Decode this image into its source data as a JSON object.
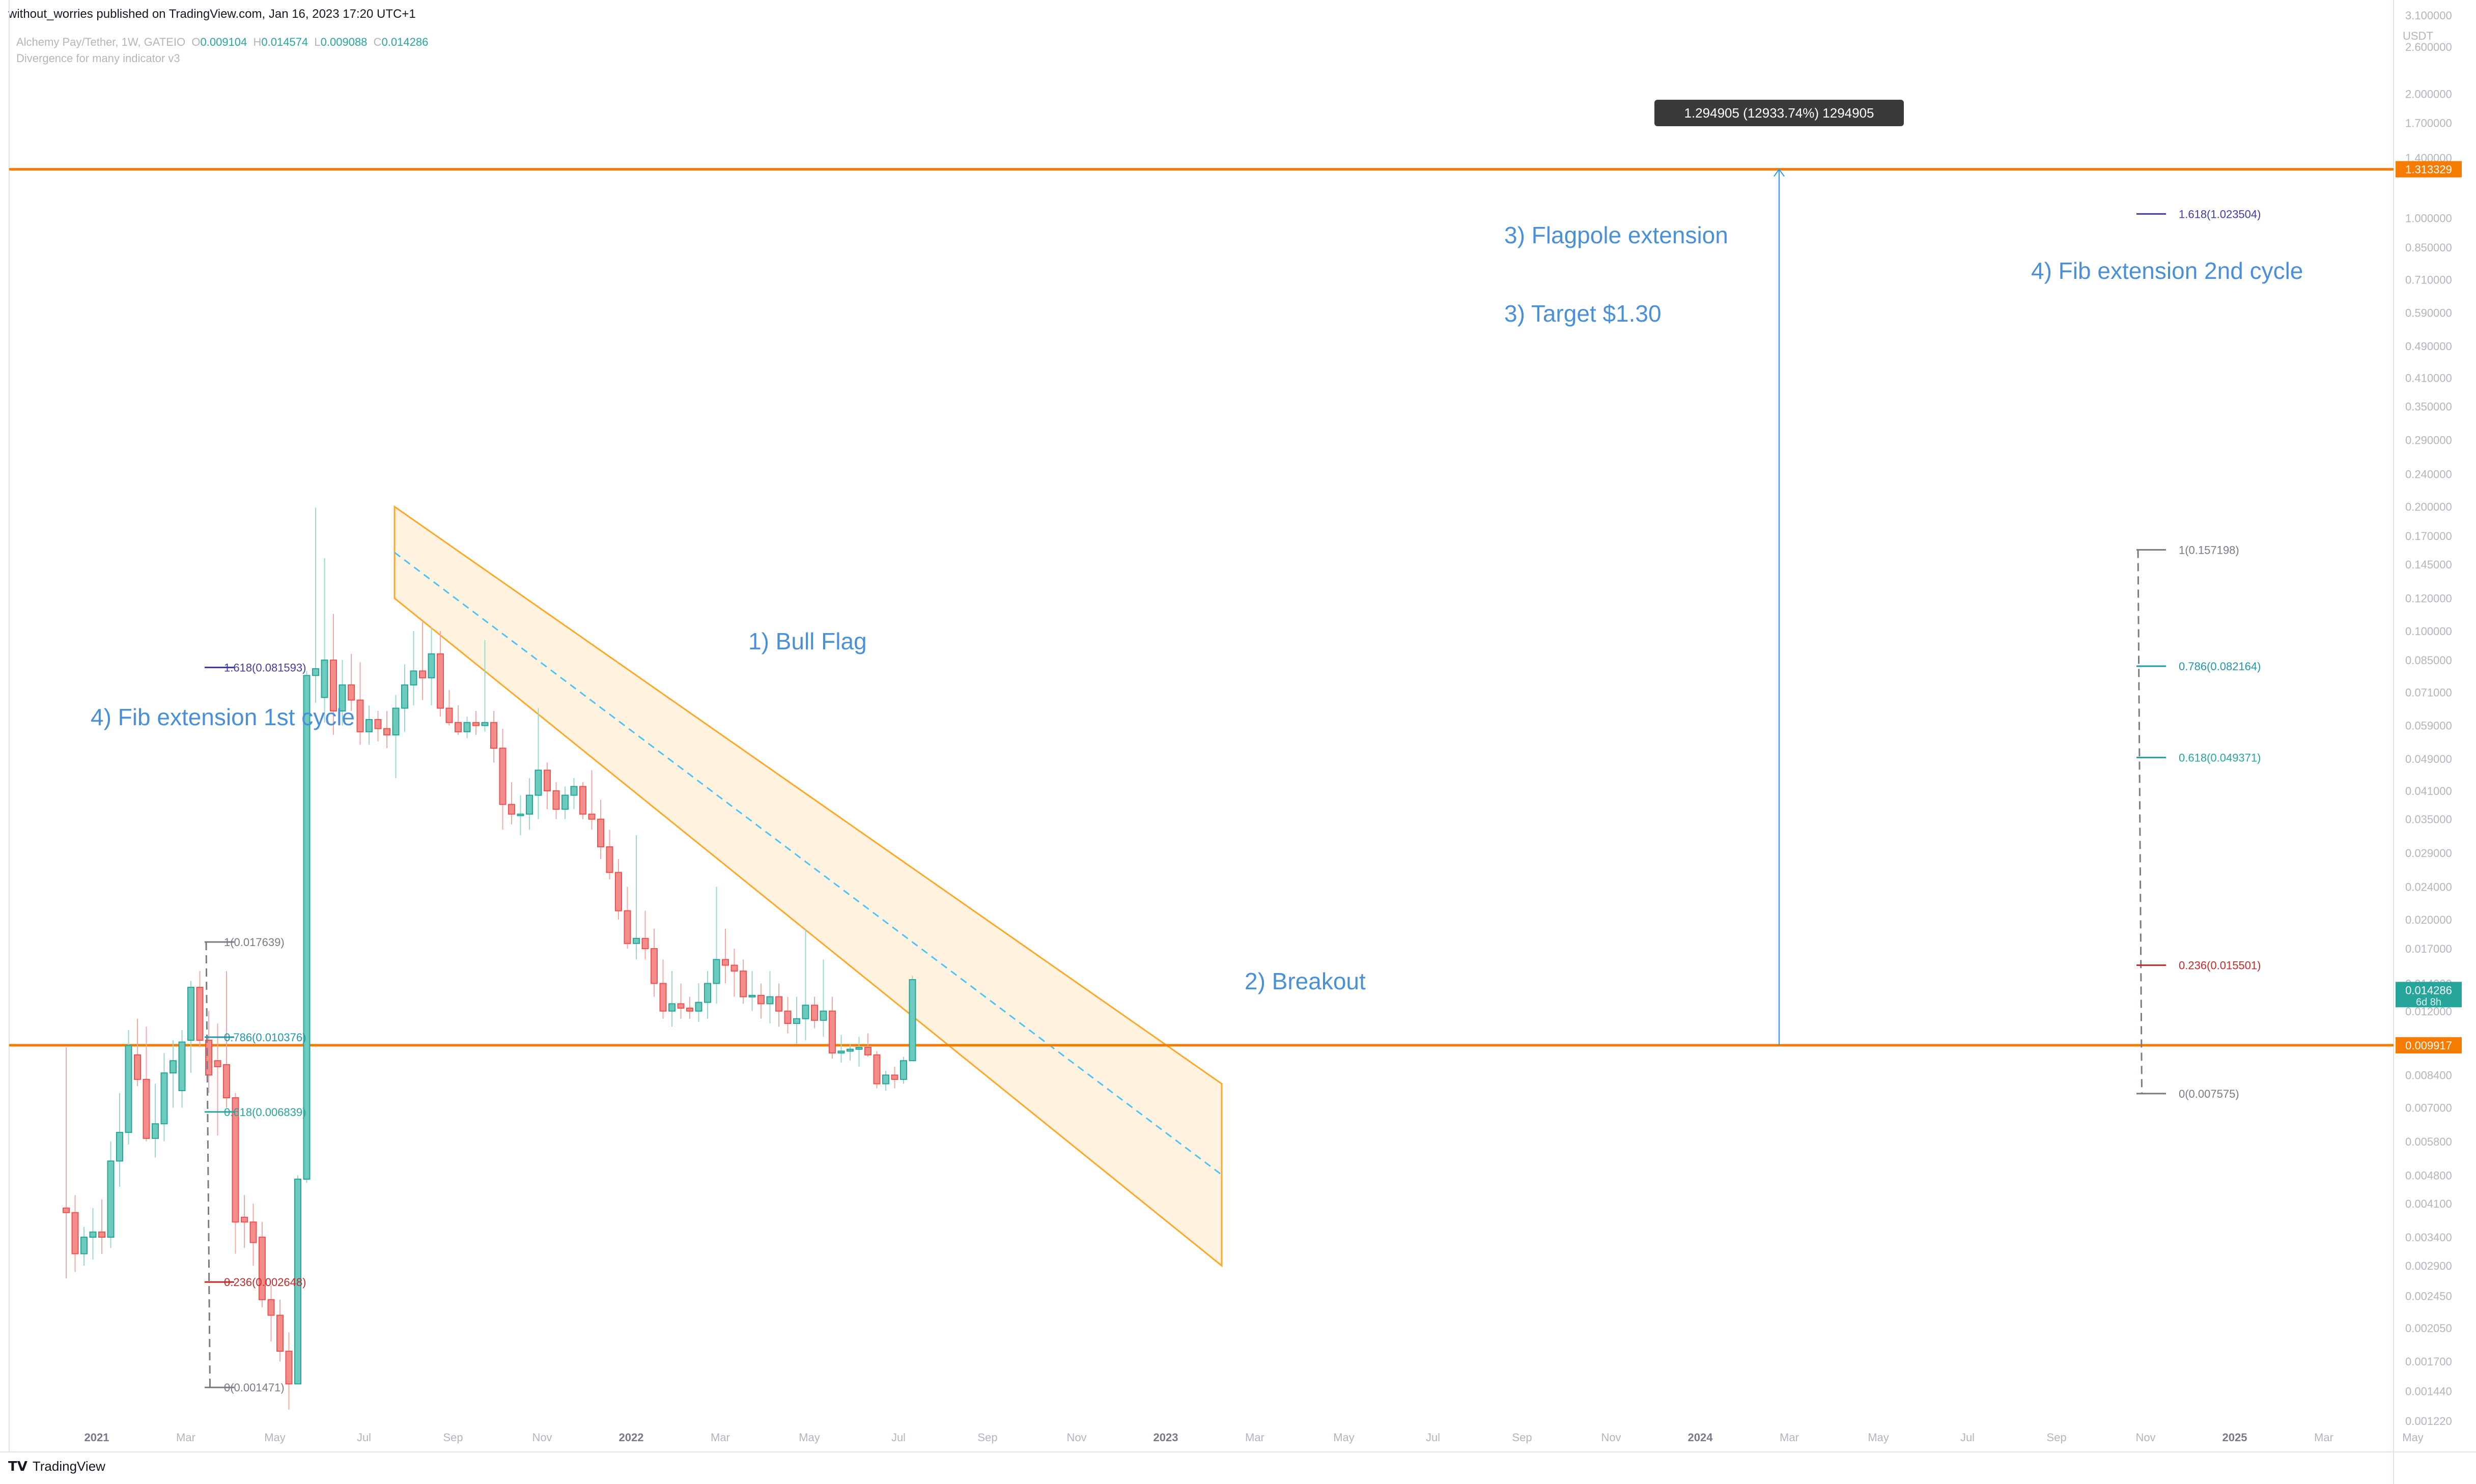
{
  "header": {
    "published": "without_worries published on TradingView.com, Jan 16, 2023 17:20 UTC+1"
  },
  "symbol": {
    "name": "Alchemy Pay/Tether, 1W, GATEIO",
    "o": "O",
    "o_val": "0.009104",
    "h": "H",
    "h_val": "0.014574",
    "l": "L",
    "l_val": "0.009088",
    "c": "C",
    "c_val": "0.014286",
    "indicator": "Divergence for many indicator v3"
  },
  "footer": {
    "brand": "TradingView"
  },
  "colors": {
    "up": "#26a69a",
    "up_body": "#6ccbbc",
    "down": "#ef5350",
    "down_body": "#f28d8b",
    "orange": "#f57c00",
    "channel": "#ffa726",
    "annotation": "#4a90d9",
    "ruler": "#2196f3"
  },
  "chart_data": {
    "type": "candlestick",
    "instrument": "Alchemy Pay/Tether",
    "timeframe": "1W",
    "exchange": "GATEIO",
    "y_scale": "log",
    "y_unit": "USDT",
    "ylim": [
      0.00105,
      3.1
    ],
    "y_ticks": [
      "3.100000",
      "2.600000",
      "2.000000",
      "1.700000",
      "1.400000",
      "1.000000",
      "0.850000",
      "0.710000",
      "0.590000",
      "0.490000",
      "0.410000",
      "0.350000",
      "0.290000",
      "0.240000",
      "0.200000",
      "0.170000",
      "0.145000",
      "0.120000",
      "0.100000",
      "0.085000",
      "0.071000",
      "0.059000",
      "0.049000",
      "0.041000",
      "0.035000",
      "0.029000",
      "0.024000",
      "0.020000",
      "0.017000",
      "0.014000",
      "0.012000",
      "0.010000",
      "0.008400",
      "0.007000",
      "0.005800",
      "0.004800",
      "0.004100",
      "0.003400",
      "0.002900",
      "0.002450",
      "0.002050",
      "0.001700",
      "0.001440",
      "0.001220"
    ],
    "x_ticks": [
      "2021",
      "Mar",
      "May",
      "Jul",
      "Sep",
      "Nov",
      "2022",
      "Mar",
      "May",
      "Jul",
      "Sep",
      "Nov",
      "2023",
      "Mar",
      "May",
      "Jul",
      "Sep",
      "Nov",
      "2024",
      "Mar",
      "May",
      "Jul",
      "Sep",
      "Nov",
      "2025",
      "Mar",
      "May"
    ],
    "price_labels": {
      "resistance": "1.313329",
      "current": "0.014286",
      "countdown": "6d 8h",
      "support": "0.009917"
    },
    "horizontal_lines": [
      {
        "name": "resistance",
        "value": 1.313329
      },
      {
        "name": "support",
        "value": 0.009917
      }
    ],
    "ohlc_weekly": [
      {
        "o": 0.004,
        "h": 0.0098,
        "l": 0.0027,
        "c": 0.0039
      },
      {
        "o": 0.0039,
        "h": 0.0043,
        "l": 0.0028,
        "c": 0.0031
      },
      {
        "o": 0.0031,
        "h": 0.0036,
        "l": 0.0029,
        "c": 0.0034
      },
      {
        "o": 0.0034,
        "h": 0.004,
        "l": 0.003,
        "c": 0.0035
      },
      {
        "o": 0.0035,
        "h": 0.0042,
        "l": 0.0031,
        "c": 0.0034
      },
      {
        "o": 0.0034,
        "h": 0.0058,
        "l": 0.0032,
        "c": 0.0052
      },
      {
        "o": 0.0052,
        "h": 0.0076,
        "l": 0.0045,
        "c": 0.0061
      },
      {
        "o": 0.0061,
        "h": 0.0108,
        "l": 0.0057,
        "c": 0.0099
      },
      {
        "o": 0.0094,
        "h": 0.0115,
        "l": 0.0079,
        "c": 0.0082
      },
      {
        "o": 0.0082,
        "h": 0.011,
        "l": 0.0058,
        "c": 0.0059
      },
      {
        "o": 0.0059,
        "h": 0.008,
        "l": 0.0053,
        "c": 0.0064
      },
      {
        "o": 0.0064,
        "h": 0.0095,
        "l": 0.0058,
        "c": 0.0085
      },
      {
        "o": 0.0085,
        "h": 0.0102,
        "l": 0.007,
        "c": 0.0091
      },
      {
        "o": 0.0077,
        "h": 0.0108,
        "l": 0.007,
        "c": 0.0101
      },
      {
        "o": 0.0102,
        "h": 0.0142,
        "l": 0.0085,
        "c": 0.0137
      },
      {
        "o": 0.0137,
        "h": 0.015,
        "l": 0.0098,
        "c": 0.0102
      },
      {
        "o": 0.0102,
        "h": 0.012,
        "l": 0.0076,
        "c": 0.0084
      },
      {
        "o": 0.0091,
        "h": 0.0112,
        "l": 0.006,
        "c": 0.0088
      },
      {
        "o": 0.0089,
        "h": 0.015,
        "l": 0.007,
        "c": 0.0074
      },
      {
        "o": 0.0074,
        "h": 0.0076,
        "l": 0.0031,
        "c": 0.0037
      },
      {
        "o": 0.0038,
        "h": 0.0043,
        "l": 0.0032,
        "c": 0.0037
      },
      {
        "o": 0.0037,
        "h": 0.0041,
        "l": 0.0029,
        "c": 0.0033
      },
      {
        "o": 0.0034,
        "h": 0.0037,
        "l": 0.0023,
        "c": 0.0024
      },
      {
        "o": 0.0024,
        "h": 0.0026,
        "l": 0.0019,
        "c": 0.0022
      },
      {
        "o": 0.0022,
        "h": 0.0024,
        "l": 0.0017,
        "c": 0.0018
      },
      {
        "o": 0.0018,
        "h": 0.002,
        "l": 0.0013,
        "c": 0.0015
      },
      {
        "o": 0.0015,
        "h": 0.0048,
        "l": 0.0015,
        "c": 0.0047
      },
      {
        "o": 0.0047,
        "h": 0.08,
        "l": 0.0046,
        "c": 0.078
      },
      {
        "o": 0.078,
        "h": 0.199,
        "l": 0.067,
        "c": 0.081
      },
      {
        "o": 0.069,
        "h": 0.15,
        "l": 0.06,
        "c": 0.085
      },
      {
        "o": 0.085,
        "h": 0.11,
        "l": 0.056,
        "c": 0.064
      },
      {
        "o": 0.064,
        "h": 0.085,
        "l": 0.059,
        "c": 0.074
      },
      {
        "o": 0.074,
        "h": 0.088,
        "l": 0.064,
        "c": 0.068
      },
      {
        "o": 0.068,
        "h": 0.084,
        "l": 0.053,
        "c": 0.057
      },
      {
        "o": 0.057,
        "h": 0.066,
        "l": 0.053,
        "c": 0.061
      },
      {
        "o": 0.061,
        "h": 0.064,
        "l": 0.054,
        "c": 0.058
      },
      {
        "o": 0.058,
        "h": 0.064,
        "l": 0.052,
        "c": 0.056
      },
      {
        "o": 0.056,
        "h": 0.07,
        "l": 0.044,
        "c": 0.065
      },
      {
        "o": 0.065,
        "h": 0.083,
        "l": 0.057,
        "c": 0.074
      },
      {
        "o": 0.074,
        "h": 0.1,
        "l": 0.066,
        "c": 0.08
      },
      {
        "o": 0.08,
        "h": 0.105,
        "l": 0.068,
        "c": 0.077
      },
      {
        "o": 0.077,
        "h": 0.102,
        "l": 0.066,
        "c": 0.088
      },
      {
        "o": 0.088,
        "h": 0.1,
        "l": 0.062,
        "c": 0.065
      },
      {
        "o": 0.065,
        "h": 0.072,
        "l": 0.059,
        "c": 0.06
      },
      {
        "o": 0.06,
        "h": 0.066,
        "l": 0.056,
        "c": 0.057
      },
      {
        "o": 0.057,
        "h": 0.062,
        "l": 0.055,
        "c": 0.06
      },
      {
        "o": 0.06,
        "h": 0.064,
        "l": 0.056,
        "c": 0.059
      },
      {
        "o": 0.059,
        "h": 0.095,
        "l": 0.057,
        "c": 0.06
      },
      {
        "o": 0.06,
        "h": 0.064,
        "l": 0.048,
        "c": 0.052
      },
      {
        "o": 0.052,
        "h": 0.058,
        "l": 0.033,
        "c": 0.038
      },
      {
        "o": 0.038,
        "h": 0.043,
        "l": 0.034,
        "c": 0.036
      },
      {
        "o": 0.036,
        "h": 0.04,
        "l": 0.032,
        "c": 0.036
      },
      {
        "o": 0.036,
        "h": 0.044,
        "l": 0.033,
        "c": 0.04
      },
      {
        "o": 0.04,
        "h": 0.065,
        "l": 0.035,
        "c": 0.046
      },
      {
        "o": 0.046,
        "h": 0.048,
        "l": 0.037,
        "c": 0.041
      },
      {
        "o": 0.041,
        "h": 0.043,
        "l": 0.035,
        "c": 0.037
      },
      {
        "o": 0.037,
        "h": 0.042,
        "l": 0.035,
        "c": 0.04
      },
      {
        "o": 0.04,
        "h": 0.044,
        "l": 0.037,
        "c": 0.042
      },
      {
        "o": 0.042,
        "h": 0.043,
        "l": 0.035,
        "c": 0.036
      },
      {
        "o": 0.036,
        "h": 0.046,
        "l": 0.033,
        "c": 0.035
      },
      {
        "o": 0.035,
        "h": 0.039,
        "l": 0.028,
        "c": 0.03
      },
      {
        "o": 0.03,
        "h": 0.033,
        "l": 0.025,
        "c": 0.026
      },
      {
        "o": 0.026,
        "h": 0.028,
        "l": 0.02,
        "c": 0.021
      },
      {
        "o": 0.021,
        "h": 0.024,
        "l": 0.017,
        "c": 0.0175
      },
      {
        "o": 0.0175,
        "h": 0.032,
        "l": 0.016,
        "c": 0.018
      },
      {
        "o": 0.018,
        "h": 0.021,
        "l": 0.016,
        "c": 0.017
      },
      {
        "o": 0.017,
        "h": 0.019,
        "l": 0.013,
        "c": 0.014
      },
      {
        "o": 0.014,
        "h": 0.016,
        "l": 0.0115,
        "c": 0.012
      },
      {
        "o": 0.012,
        "h": 0.015,
        "l": 0.011,
        "c": 0.0125
      },
      {
        "o": 0.0125,
        "h": 0.014,
        "l": 0.0115,
        "c": 0.0122
      },
      {
        "o": 0.0122,
        "h": 0.013,
        "l": 0.0115,
        "c": 0.012
      },
      {
        "o": 0.012,
        "h": 0.014,
        "l": 0.0113,
        "c": 0.0126
      },
      {
        "o": 0.0126,
        "h": 0.015,
        "l": 0.0115,
        "c": 0.014
      },
      {
        "o": 0.014,
        "h": 0.024,
        "l": 0.0125,
        "c": 0.016
      },
      {
        "o": 0.016,
        "h": 0.019,
        "l": 0.014,
        "c": 0.0155
      },
      {
        "o": 0.0155,
        "h": 0.017,
        "l": 0.013,
        "c": 0.015
      },
      {
        "o": 0.015,
        "h": 0.016,
        "l": 0.0125,
        "c": 0.013
      },
      {
        "o": 0.013,
        "h": 0.015,
        "l": 0.012,
        "c": 0.0131
      },
      {
        "o": 0.0131,
        "h": 0.014,
        "l": 0.0115,
        "c": 0.0125
      },
      {
        "o": 0.0125,
        "h": 0.015,
        "l": 0.0112,
        "c": 0.013
      },
      {
        "o": 0.013,
        "h": 0.014,
        "l": 0.011,
        "c": 0.012
      },
      {
        "o": 0.012,
        "h": 0.013,
        "l": 0.0106,
        "c": 0.0112
      },
      {
        "o": 0.0112,
        "h": 0.013,
        "l": 0.01,
        "c": 0.0115
      },
      {
        "o": 0.0115,
        "h": 0.019,
        "l": 0.0102,
        "c": 0.0124
      },
      {
        "o": 0.0124,
        "h": 0.013,
        "l": 0.0109,
        "c": 0.0114
      },
      {
        "o": 0.0114,
        "h": 0.016,
        "l": 0.0104,
        "c": 0.012
      },
      {
        "o": 0.012,
        "h": 0.013,
        "l": 0.0092,
        "c": 0.0095
      },
      {
        "o": 0.0095,
        "h": 0.0105,
        "l": 0.009,
        "c": 0.0096
      },
      {
        "o": 0.0096,
        "h": 0.01,
        "l": 0.0091,
        "c": 0.0097
      },
      {
        "o": 0.0097,
        "h": 0.0104,
        "l": 0.0088,
        "c": 0.0098
      },
      {
        "o": 0.0098,
        "h": 0.0106,
        "l": 0.0093,
        "c": 0.0094
      },
      {
        "o": 0.0094,
        "h": 0.0096,
        "l": 0.0078,
        "c": 0.008
      },
      {
        "o": 0.008,
        "h": 0.0086,
        "l": 0.0077,
        "c": 0.0084
      },
      {
        "o": 0.0084,
        "h": 0.0088,
        "l": 0.0078,
        "c": 0.0082
      },
      {
        "o": 0.0082,
        "h": 0.0093,
        "l": 0.008,
        "c": 0.0091
      },
      {
        "o": 0.0091,
        "h": 0.0146,
        "l": 0.0091,
        "c": 0.0143
      }
    ],
    "fib_1st_cycle": {
      "title": "4) Fib extension 1st cycle",
      "levels": [
        {
          "label": "1.618(0.081593)",
          "value": 0.081593,
          "color": "#3f3ca8"
        },
        {
          "label": "1(0.017639)",
          "value": 0.017639,
          "color": "#787b86"
        },
        {
          "label": "0.786(0.010376)",
          "value": 0.010376,
          "color": "#2196a9"
        },
        {
          "label": "0.618(0.006839)",
          "value": 0.006839,
          "color": "#26a69a"
        },
        {
          "label": "0.236(0.002648)",
          "value": 0.002648,
          "color": "#c62828"
        },
        {
          "label": "0(0.001471)",
          "value": 0.001471,
          "color": "#787b86"
        }
      ]
    },
    "fib_2nd_cycle": {
      "title": "4) Fib extension 2nd cycle",
      "levels": [
        {
          "label": "1.618(1.023504)",
          "value": 1.023504,
          "color": "#3f3ca8"
        },
        {
          "label": "1(0.157198)",
          "value": 0.157198,
          "color": "#787b86"
        },
        {
          "label": "0.786(0.082164)",
          "value": 0.082164,
          "color": "#2196a9"
        },
        {
          "label": "0.618(0.049371)",
          "value": 0.049371,
          "color": "#26a69a"
        },
        {
          "label": "0.236(0.015501)",
          "value": 0.015501,
          "color": "#c62828"
        },
        {
          "label": "0(0.007575)",
          "value": 0.007575,
          "color": "#787b86"
        }
      ]
    },
    "annotations": {
      "bull_flag": "1) Bull Flag",
      "breakout": "2) Breakout",
      "flagpole": "3) Flagpole extension",
      "target": "3) Target $1.30"
    },
    "measure_label": "1.294905 (12933.74%) 1294905"
  }
}
